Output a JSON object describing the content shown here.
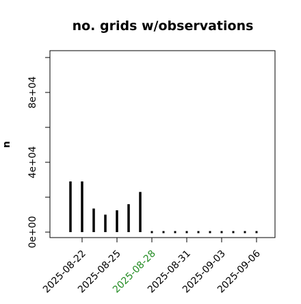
{
  "chart_data": {
    "type": "bar",
    "title": "no. grids w/observations",
    "xlabel": "",
    "ylabel": "n",
    "categories": [
      "2025-08-21",
      "2025-08-22",
      "2025-08-23",
      "2025-08-24",
      "2025-08-25",
      "2025-08-26",
      "2025-08-27",
      "2025-08-28",
      "2025-08-29",
      "2025-08-30",
      "2025-08-31",
      "2025-09-01",
      "2025-09-02",
      "2025-09-03",
      "2025-09-04",
      "2025-09-05",
      "2025-09-06"
    ],
    "values": [
      29000,
      29000,
      13500,
      10000,
      12500,
      16000,
      23000,
      0,
      0,
      0,
      0,
      0,
      0,
      0,
      0,
      0,
      0
    ],
    "ylim": [
      0,
      102000
    ],
    "y_ticks": [
      0,
      20000,
      40000,
      60000,
      80000,
      100000
    ],
    "y_tick_labels": [
      "0e+00",
      "4e+04",
      "8e+04"
    ],
    "y_labeled_ticks": [
      0,
      40000,
      80000
    ],
    "x_tick_labels": [
      "2025-08-22",
      "2025-08-25",
      "2025-08-28",
      "2025-08-31",
      "2025-09-03",
      "2025-09-06"
    ],
    "x_tick_positions": [
      1,
      4,
      7,
      10,
      13,
      16
    ],
    "highlight_label": "2025-08-28",
    "colors": {
      "bars": "#000000",
      "highlight_label": "#228B22",
      "axis": "#000000"
    },
    "grid": false,
    "legend": "none"
  }
}
